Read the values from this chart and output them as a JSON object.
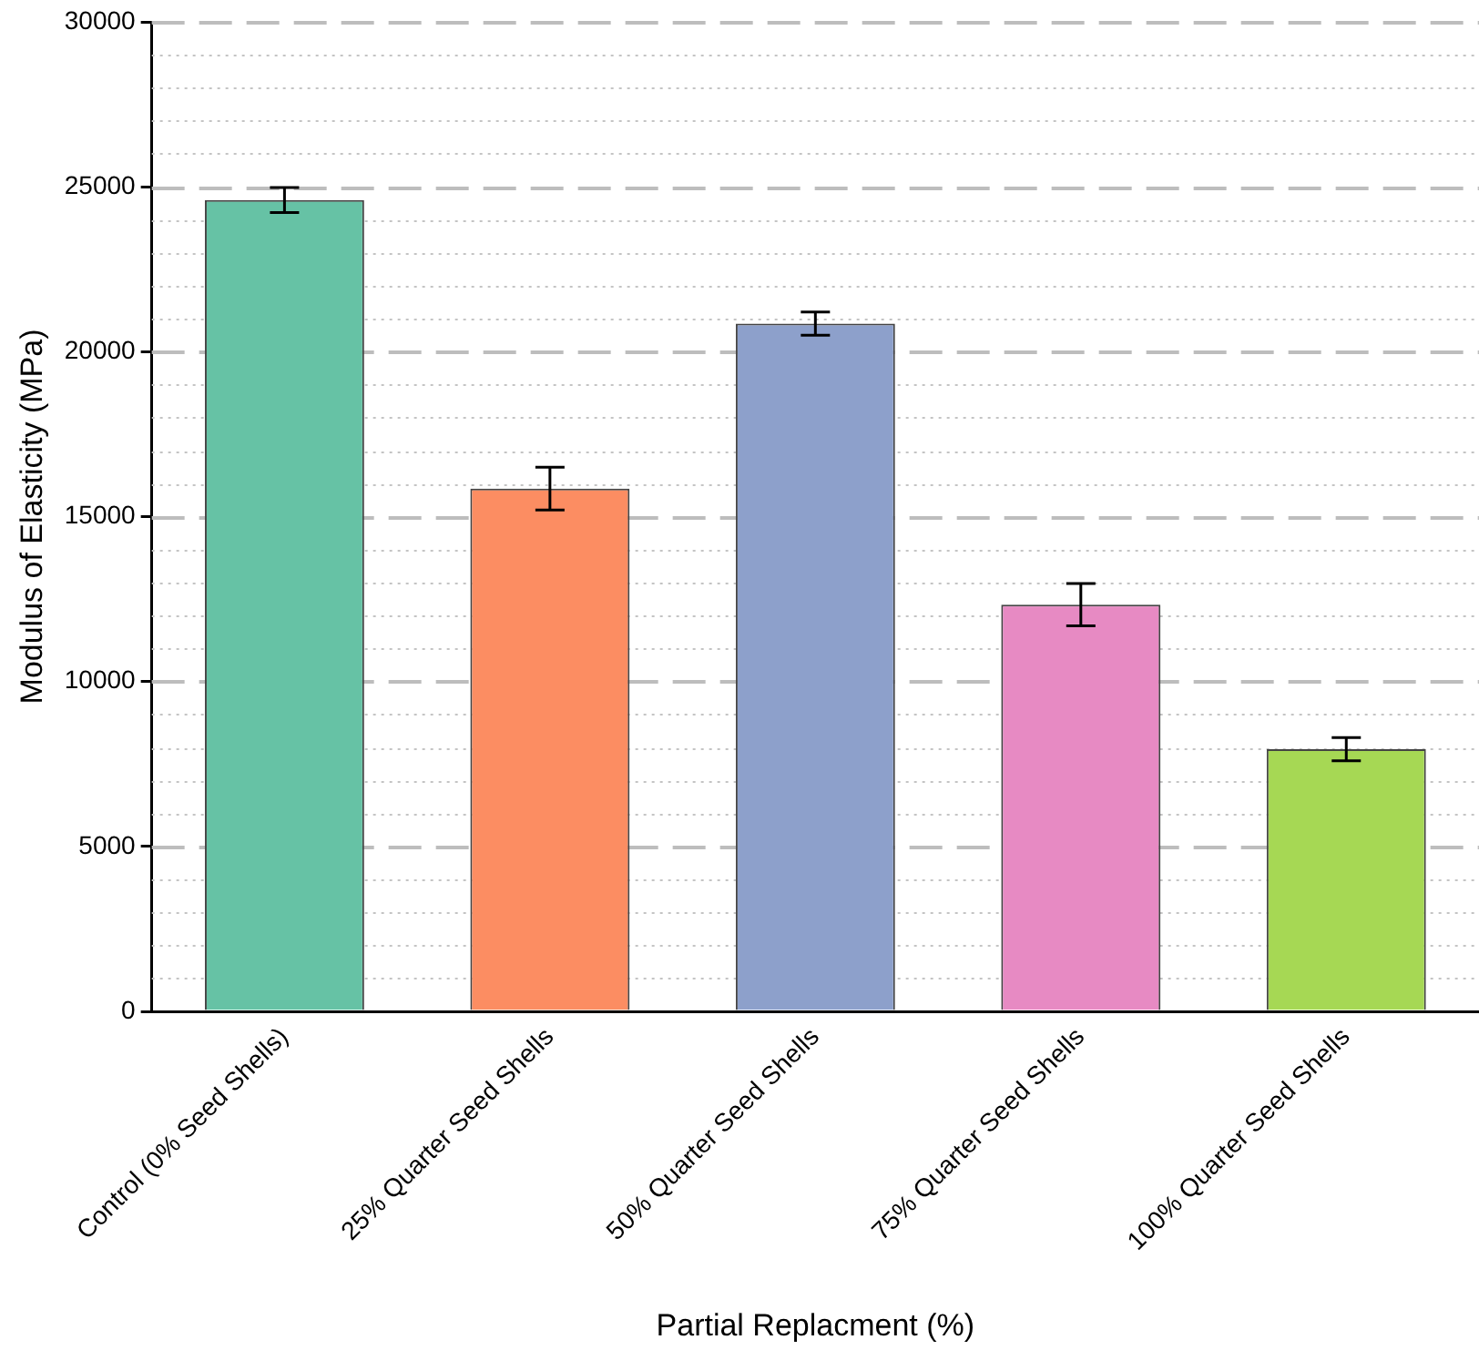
{
  "chart_data": {
    "type": "bar",
    "xlabel": "Partial Replacment (%)",
    "ylabel": "Modulus of Elasticity (MPa)",
    "categories": [
      "Control (0% Seed Shells)",
      "25% Quarter Seed Shells",
      "50% Quarter Seed Shells",
      "75% Quarter Seed Shells",
      "100% Quarter Seed Shells"
    ],
    "values": [
      24600,
      15850,
      20850,
      12330,
      7950
    ],
    "errors": [
      380,
      650,
      350,
      640,
      350
    ],
    "colors": [
      "#66c2a5",
      "#fc8d62",
      "#8da0cb",
      "#e78ac3",
      "#a6d854"
    ],
    "ylim": [
      0,
      30000
    ],
    "yticks": [
      0,
      {
        "value": 1000,
        "label": null
      },
      {
        "value": 2000,
        "label": null
      },
      {
        "value": 3000,
        "label": null
      },
      {
        "value": 4000,
        "label": null
      },
      5000,
      {
        "value": 6000,
        "label": null
      },
      {
        "value": 7000,
        "label": null
      },
      {
        "value": 8000,
        "label": null
      },
      {
        "value": 9000,
        "label": null
      },
      10000,
      {
        "value": 11000,
        "label": null
      },
      {
        "value": 12000,
        "label": null
      },
      {
        "value": 13000,
        "label": null
      },
      {
        "value": 14000,
        "label": null
      },
      15000,
      {
        "value": 16000,
        "label": null
      },
      {
        "value": 17000,
        "label": null
      },
      {
        "value": 18000,
        "label": null
      },
      {
        "value": 19000,
        "label": null
      },
      20000,
      {
        "value": 21000,
        "label": null
      },
      {
        "value": 22000,
        "label": null
      },
      {
        "value": 23000,
        "label": null
      },
      {
        "value": 24000,
        "label": null
      },
      25000,
      {
        "value": 26000,
        "label": null
      },
      {
        "value": 27000,
        "label": null
      },
      {
        "value": 28000,
        "label": null
      },
      {
        "value": 29000,
        "label": null
      },
      30000
    ],
    "grid": "y",
    "legend": false
  }
}
